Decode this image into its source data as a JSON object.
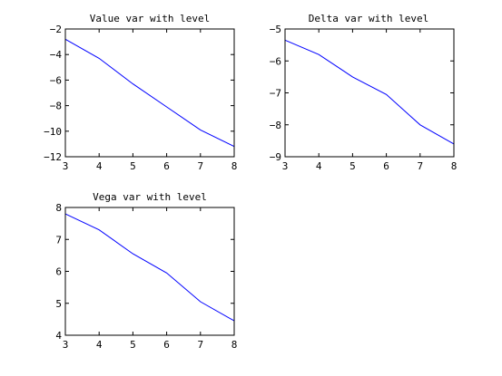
{
  "chart_data": [
    {
      "type": "line",
      "title": "Value var with level",
      "xlabel": "",
      "ylabel": "",
      "xlim": [
        3,
        8
      ],
      "ylim": [
        -12,
        -2
      ],
      "xticks": [
        3,
        4,
        5,
        6,
        7,
        8
      ],
      "yticks": [
        -12,
        -10,
        -8,
        -6,
        -4,
        -2
      ],
      "series": [
        {
          "color": "#0000ff",
          "x": [
            3,
            4,
            5,
            6,
            7,
            8
          ],
          "y": [
            -2.8,
            -4.3,
            -6.3,
            -8.1,
            -9.9,
            -11.2
          ]
        }
      ]
    },
    {
      "type": "line",
      "title": "Delta var with level",
      "xlabel": "",
      "ylabel": "",
      "xlim": [
        3,
        8
      ],
      "ylim": [
        -9,
        -5
      ],
      "xticks": [
        3,
        4,
        5,
        6,
        7,
        8
      ],
      "yticks": [
        -9,
        -8,
        -7,
        -6,
        -5
      ],
      "series": [
        {
          "color": "#0000ff",
          "x": [
            3,
            4,
            5,
            6,
            7,
            8
          ],
          "y": [
            -5.35,
            -5.8,
            -6.5,
            -7.05,
            -8.0,
            -8.6
          ]
        }
      ]
    },
    {
      "type": "line",
      "title": "Vega var with level",
      "xlabel": "",
      "ylabel": "",
      "xlim": [
        3,
        8
      ],
      "ylim": [
        4,
        8
      ],
      "xticks": [
        3,
        4,
        5,
        6,
        7,
        8
      ],
      "yticks": [
        4,
        5,
        6,
        7,
        8
      ],
      "series": [
        {
          "color": "#0000ff",
          "x": [
            3,
            4,
            5,
            6,
            7,
            8
          ],
          "y": [
            7.8,
            7.3,
            6.55,
            5.95,
            5.05,
            4.45
          ]
        }
      ]
    }
  ]
}
